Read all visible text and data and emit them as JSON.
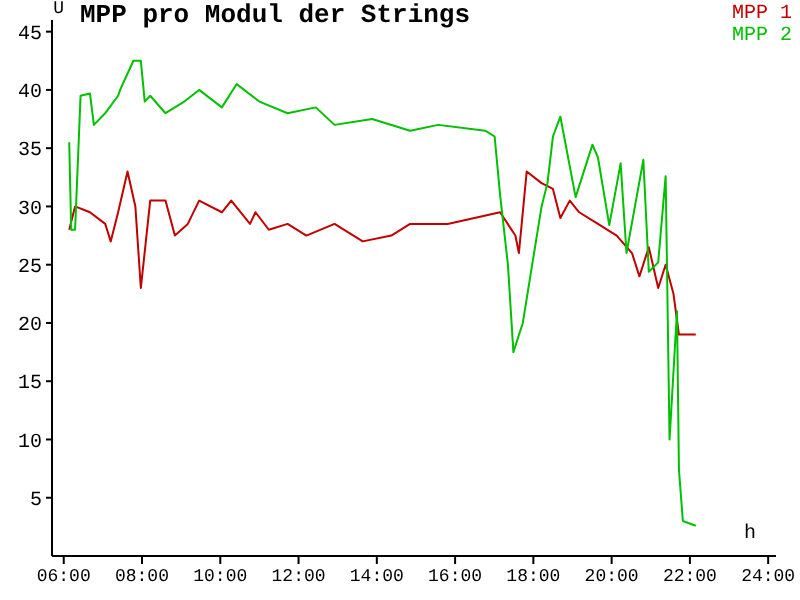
{
  "chart_data": {
    "type": "line",
    "title": "MPP pro Modul der Strings",
    "ylabel": "U",
    "xlabel": "h",
    "xlim": [
      5.7,
      24.2
    ],
    "xticks": [
      {
        "value": 6,
        "label": "06:00"
      },
      {
        "value": 8,
        "label": "08:00"
      },
      {
        "value": 10,
        "label": "10:00"
      },
      {
        "value": 12,
        "label": "12:00"
      },
      {
        "value": 14,
        "label": "14:00"
      },
      {
        "value": 16,
        "label": "16:00"
      },
      {
        "value": 18,
        "label": "18:00"
      },
      {
        "value": 20,
        "label": "20:00"
      },
      {
        "value": 22,
        "label": "22:00"
      },
      {
        "value": 24,
        "label": "24:00"
      }
    ],
    "ylim": [
      0,
      46
    ],
    "yticks": [
      5,
      10,
      15,
      20,
      25,
      30,
      35,
      40,
      45
    ],
    "grid": false,
    "legend": "top right",
    "marker": "none",
    "line_style": "solid",
    "series": [
      {
        "name": "MPP 1",
        "color": "#c00000",
        "x": [
          6.14,
          6.29,
          6.67,
          7.06,
          7.2,
          7.39,
          7.63,
          7.83,
          7.97,
          8.21,
          8.6,
          8.84,
          9.17,
          9.46,
          10.04,
          10.28,
          10.76,
          10.9,
          11.24,
          11.72,
          12.2,
          12.92,
          13.64,
          14.37,
          14.85,
          15.81,
          17.15,
          17.54,
          17.63,
          17.83,
          18.21,
          18.5,
          18.69,
          18.93,
          19.17,
          19.65,
          20.13,
          20.52,
          20.71,
          20.95,
          21.19,
          21.38,
          21.58,
          21.72,
          22.15
        ],
        "values": [
          28,
          30,
          29.5,
          28.5,
          27,
          29.5,
          33,
          30,
          23,
          30.5,
          30.5,
          27.5,
          28.5,
          30.5,
          29.5,
          30.5,
          28.5,
          29.5,
          28,
          28.5,
          27.5,
          28.5,
          27,
          27.5,
          28.5,
          28.5,
          29.5,
          27.5,
          26,
          33,
          32,
          31.5,
          29,
          30.5,
          29.5,
          28.5,
          27.5,
          26,
          24,
          26.5,
          23,
          25,
          22.5,
          19,
          19
        ]
      },
      {
        "name": "MPP 2",
        "color": "#00c000",
        "x": [
          6.14,
          6.19,
          6.29,
          6.43,
          6.67,
          6.77,
          7.06,
          7.39,
          7.44,
          7.78,
          7.97,
          8.07,
          8.21,
          8.6,
          9.08,
          9.46,
          10.04,
          10.42,
          11,
          11.72,
          12.44,
          12.92,
          13.88,
          14.85,
          15.57,
          16.77,
          17.01,
          17.15,
          17.35,
          17.49,
          17.73,
          17.97,
          18.21,
          18.36,
          18.5,
          18.69,
          19.08,
          19.51,
          19.65,
          19.94,
          20.23,
          20.38,
          20.81,
          20.95,
          21.19,
          21.38,
          21.48,
          21.67,
          21.72,
          21.82,
          22.15
        ],
        "values": [
          35.5,
          28,
          28,
          39.5,
          39.7,
          37,
          38,
          39.5,
          40,
          42.5,
          42.5,
          39,
          39.5,
          38,
          39,
          40,
          38.5,
          40.5,
          39,
          38,
          38.5,
          37,
          37.5,
          36.5,
          37,
          36.5,
          36,
          31,
          25,
          17.5,
          20,
          25,
          30,
          32,
          36,
          37.7,
          30.8,
          35.3,
          34.2,
          28.4,
          33.7,
          26,
          34,
          24.4,
          25.2,
          32.6,
          10,
          21,
          7.4,
          3,
          2.6
        ]
      }
    ]
  }
}
